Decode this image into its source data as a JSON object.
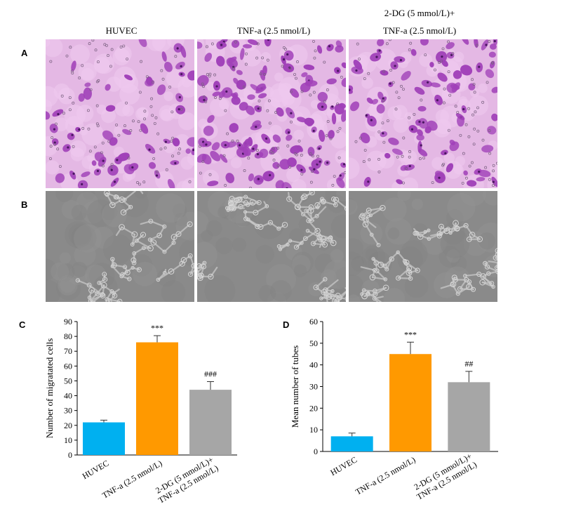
{
  "columns": {
    "col1": {
      "line1": "HUVEC"
    },
    "col2": {
      "line1": "TNF-a (2.5 nmol/L)"
    },
    "col3": {
      "line1": "2-DG (5 mmol/L)+",
      "line2": "TNF-a (2.5 nmol/L)"
    }
  },
  "panels": {
    "a": "A",
    "b": "B",
    "c": "C",
    "d": "D"
  },
  "colors": {
    "blue": "#00b0f0",
    "orange": "#ff9900",
    "gray": "#a6a6a6",
    "stain": "#a040b8",
    "stain_bg": "#e4b8e4",
    "phase_bg": "#8a8a8a"
  },
  "chart_data": [
    {
      "type": "bar",
      "ylabel": "Number of migratated cells",
      "ylim": [
        0,
        90
      ],
      "yticks": [
        0,
        10,
        20,
        30,
        40,
        50,
        60,
        70,
        80,
        90
      ],
      "categories": [
        "HUVEC",
        "TNF-a (2.5 nmol/L)",
        "2-DG (5 mmol/L)+ TNF-a (2.5 nmol/L)"
      ],
      "category_lines": [
        [
          "HUVEC"
        ],
        [
          "TNF-a (2.5 nmol/L)"
        ],
        [
          "2-DG (5 mmol/L)+",
          "TNF-a (2.5 nmol/L)"
        ]
      ],
      "values": [
        22,
        76,
        44
      ],
      "errors": [
        1.5,
        4.5,
        5.5
      ],
      "annotations": [
        "",
        "***",
        "###"
      ]
    },
    {
      "type": "bar",
      "ylabel": "Mean number of tubes",
      "ylim": [
        0,
        60
      ],
      "yticks": [
        0,
        10,
        20,
        30,
        40,
        50,
        60
      ],
      "categories": [
        "HUVEC",
        "TNF-a (2.5 nmol/L)",
        "2-DG (5 mmol/L)+ TNF-a (2.5 nmol/L)"
      ],
      "category_lines": [
        [
          "HUVEC"
        ],
        [
          "TNF-a (2.5 nmol/L)"
        ],
        [
          "2-DG (5 mmol/L)+",
          "TNF-a (2.5 nmol/L)"
        ]
      ],
      "values": [
        7,
        45,
        32
      ],
      "errors": [
        1.5,
        5.5,
        5
      ],
      "annotations": [
        "",
        "***",
        "##"
      ]
    }
  ]
}
